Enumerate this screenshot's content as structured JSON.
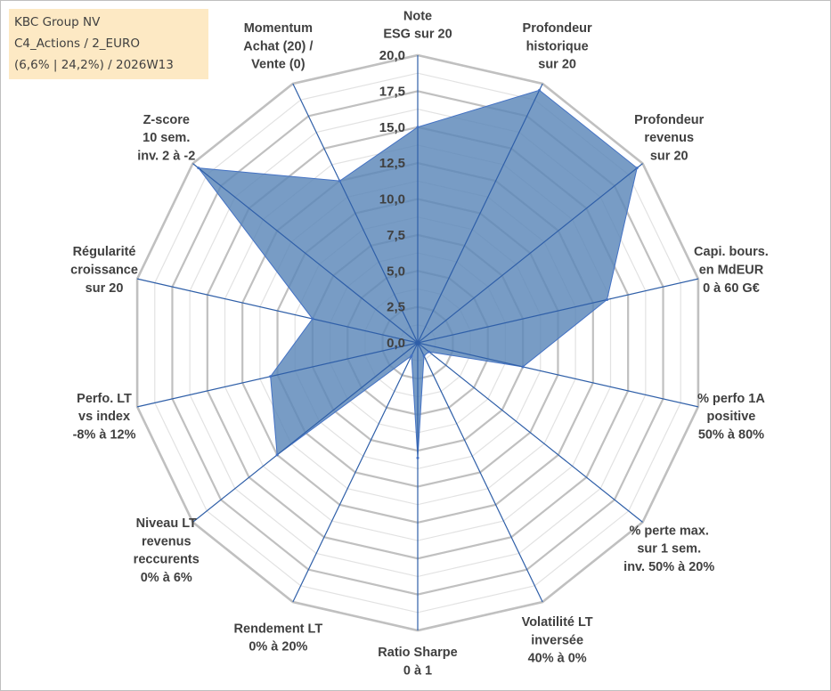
{
  "title": {
    "line1": "KBC Group NV",
    "line2": "C4_Actions / 2_EURO",
    "line3": "(6,6% | 24,2%) / 2026W13"
  },
  "chart_data": {
    "type": "radar",
    "rlim": [
      0,
      20
    ],
    "tick_values": [
      0,
      2.5,
      5,
      7.5,
      10,
      12.5,
      15,
      17.5,
      20
    ],
    "tick_labels": [
      "0,0",
      "2,5",
      "5,0",
      "7,5",
      "10,0",
      "12,5",
      "15,0",
      "17,5",
      "20,0"
    ],
    "axes": [
      {
        "label": [
          "Note",
          "ESG sur 20"
        ],
        "value": 15.0
      },
      {
        "label": [
          "Profondeur",
          "historique",
          "sur 20"
        ],
        "value": 19.5
      },
      {
        "label": [
          "Profondeur",
          "revenus",
          "sur 20"
        ],
        "value": 19.5
      },
      {
        "label": [
          "Capi. bours.",
          "en MdEUR",
          "0 à 60 G€"
        ],
        "value": 13.5
      },
      {
        "label": [
          "% perfo 1A",
          "positive",
          "50% à 80%"
        ],
        "value": 7.5
      },
      {
        "label": [
          "% perte max.",
          "sur 1 sem.",
          "inv. 50% à 20%"
        ],
        "value": 1.0
      },
      {
        "label": [
          "Volatilité LT",
          "inversée",
          "40% à 0%"
        ],
        "value": 1.0
      },
      {
        "label": [
          "Ratio Sharpe",
          "0 à 1"
        ],
        "value": 8.0
      },
      {
        "label": [
          "Rendement LT",
          "0% à 20%"
        ],
        "value": 1.0
      },
      {
        "label": [
          "Niveau LT",
          "revenus",
          "reccurents",
          "0% à 6%"
        ],
        "value": 12.5
      },
      {
        "label": [
          "Perfo. LT",
          "vs index",
          "-8% à 12%"
        ],
        "value": 10.5
      },
      {
        "label": [
          "Régularité",
          "croissance",
          "sur 20"
        ],
        "value": 7.5
      },
      {
        "label": [
          "Z-score",
          "10 sem.",
          "inv. 2 à -2"
        ],
        "value": 19.5
      },
      {
        "label": [
          "Momentum",
          "Achat (20) /",
          "Vente (0)"
        ],
        "value": 12.5
      }
    ],
    "colors": {
      "fill": "#5a86b8",
      "line": "#4472c4",
      "grid": "#c8c8c8"
    },
    "grid": true
  }
}
